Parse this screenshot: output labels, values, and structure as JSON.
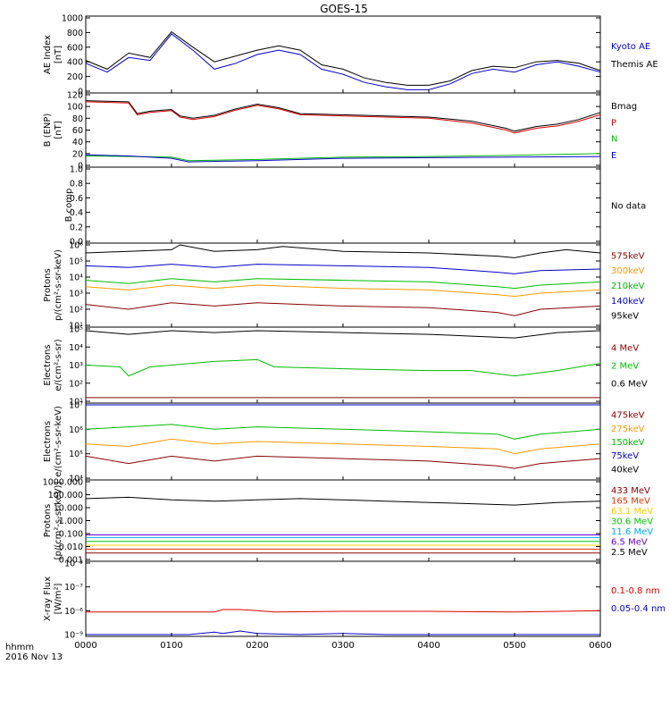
{
  "title": "GOES-15",
  "footer": {
    "hhmm": "hhmm",
    "date": "2016 Nov 13"
  },
  "x_axis": {
    "ticks": [
      "0000",
      "0100",
      "0200",
      "0300",
      "0400",
      "0500",
      "0600"
    ],
    "range_hours": [
      0,
      6
    ]
  },
  "panels": [
    {
      "id": "ae",
      "ylabel": [
        "AE Index",
        "[nT]"
      ],
      "ticks": [
        "1000",
        "800",
        "600",
        "400",
        "200",
        "0"
      ],
      "ylim": [
        0,
        1000
      ],
      "scale": "linear",
      "legend": [
        {
          "text": "Kyoto AE",
          "color": "#0000cc"
        },
        {
          "text": "Themis AE",
          "color": "#000000"
        }
      ]
    },
    {
      "id": "b-enp",
      "ylabel": [
        "B (ENP)",
        "[nT]"
      ],
      "ticks": [
        "120",
        "100",
        "80",
        "60",
        "40",
        "20",
        "0"
      ],
      "ylim": [
        0,
        120
      ],
      "scale": "linear",
      "legend": [
        {
          "text": "Bmag",
          "color": "#000000"
        },
        {
          "text": "P",
          "color": "#dd0000"
        },
        {
          "text": "N",
          "color": "#00bb00"
        },
        {
          "text": "E",
          "color": "#0000cc"
        }
      ]
    },
    {
      "id": "b-comp",
      "ylabel": [
        "B comp"
      ],
      "ticks": [
        "1.0",
        "0.8",
        "0.6",
        "0.4",
        "0.2",
        "0.0"
      ],
      "ylim": [
        0,
        1
      ],
      "scale": "linear",
      "legend": [
        {
          "text": "No data",
          "color": "#000000"
        }
      ]
    },
    {
      "id": "protons-low",
      "ylabel": [
        "Protons",
        "p/(cm²-s-sr-keV)"
      ],
      "ticks": [
        "10⁶",
        "10⁵",
        "10⁴",
        "10³",
        "10²",
        "10¹"
      ],
      "ylim": [
        1,
        6
      ],
      "scale": "log",
      "legend": [
        {
          "text": "575keV",
          "color": "#880000"
        },
        {
          "text": "300keV",
          "color": "#ff9900"
        },
        {
          "text": "210keV",
          "color": "#00bb00"
        },
        {
          "text": "140keV",
          "color": "#0000cc"
        },
        {
          "text": "95keV",
          "color": "#000000"
        }
      ]
    },
    {
      "id": "electrons-mev",
      "ylabel": [
        "Electrons",
        "e/(cm²-s-sr)"
      ],
      "ticks": [
        "10⁵",
        "10⁴",
        "10³",
        "10²",
        "10¹"
      ],
      "ylim": [
        1,
        5
      ],
      "scale": "log",
      "legend": [
        {
          "text": "4 MeV",
          "color": "#880000"
        },
        {
          "text": "2 MeV",
          "color": "#00bb00"
        },
        {
          "text": "0.6 MeV",
          "color": "#000000"
        }
      ]
    },
    {
      "id": "electrons-kev",
      "ylabel": [
        "Electrons",
        "e/(cm²-s-sr-keV)"
      ],
      "ticks": [
        "10⁷",
        "10⁶",
        "10⁵",
        "10⁴"
      ],
      "ylim": [
        4,
        7
      ],
      "scale": "log",
      "legend": [
        {
          "text": "475keV",
          "color": "#880000"
        },
        {
          "text": "275keV",
          "color": "#ff9900"
        },
        {
          "text": "150keV",
          "color": "#00bb00"
        },
        {
          "text": "75keV",
          "color": "#0000cc"
        },
        {
          "text": "40keV",
          "color": "#000000"
        }
      ]
    },
    {
      "id": "protons-mev",
      "ylabel": [
        "Protons",
        "[p/(cm²-s-sr-keV)]"
      ],
      "ticks": [
        "1000.000",
        "100.000",
        "10.000",
        "1.000",
        "0.100",
        "0.010",
        "0.001"
      ],
      "ylim": [
        -3,
        3
      ],
      "scale": "log",
      "legend": [
        {
          "text": "433 MeV",
          "color": "#880000"
        },
        {
          "text": "165 MeV",
          "color": "#dd3300"
        },
        {
          "text": "63.1 MeV",
          "color": "#ffcc00"
        },
        {
          "text": "30.6 MeV",
          "color": "#00cc00"
        },
        {
          "text": "11.6 MeV",
          "color": "#00aaff"
        },
        {
          "text": "6.5 MeV",
          "color": "#6600cc"
        },
        {
          "text": "2.5 MeV",
          "color": "#000000"
        }
      ]
    },
    {
      "id": "xray",
      "ylabel": [
        "X-ray Flux",
        "[W/m²]"
      ],
      "ticks": [
        "10⁻³",
        "10⁻⁷",
        "10⁻⁶",
        "10⁻⁹"
      ],
      "ylim": [
        -9,
        -3
      ],
      "scale": "log",
      "legend": [
        {
          "text": "0.1-0.8 nm",
          "color": "#dd0000"
        },
        {
          "text": "0.05-0.4 nm",
          "color": "#0000cc"
        }
      ]
    }
  ],
  "chart_data": {
    "type": "line",
    "x_unit": "hours since 0000 UT",
    "series": [
      {
        "panel": "ae",
        "name": "Themis AE",
        "color": "#000000",
        "x": [
          0,
          0.25,
          0.5,
          0.75,
          1.0,
          1.25,
          1.5,
          1.75,
          2.0,
          2.25,
          2.5,
          2.75,
          3.0,
          3.25,
          3.5,
          3.75,
          4.0,
          4.25,
          4.5,
          4.75,
          5.0,
          5.25,
          5.5,
          5.75,
          6.0
        ],
        "y": [
          420,
          300,
          520,
          460,
          810,
          600,
          400,
          480,
          560,
          620,
          560,
          360,
          300,
          180,
          120,
          80,
          80,
          140,
          280,
          340,
          320,
          400,
          420,
          380,
          280
        ]
      },
      {
        "panel": "ae",
        "name": "Kyoto AE",
        "color": "#0000cc",
        "x": [
          0,
          0.25,
          0.5,
          0.75,
          1.0,
          1.25,
          1.5,
          1.75,
          2.0,
          2.25,
          2.5,
          2.75,
          3.0,
          3.25,
          3.5,
          3.75,
          4.0,
          4.25,
          4.5,
          4.75,
          5.0,
          5.25,
          5.5,
          5.75,
          6.0
        ],
        "y": [
          380,
          260,
          460,
          420,
          780,
          560,
          300,
          380,
          500,
          560,
          500,
          300,
          230,
          120,
          60,
          20,
          20,
          100,
          240,
          300,
          260,
          360,
          400,
          340,
          260
        ]
      },
      {
        "panel": "b-enp",
        "name": "Bmag",
        "color": "#000000",
        "x": [
          0,
          0.5,
          0.6,
          0.75,
          1.0,
          1.1,
          1.25,
          1.5,
          1.75,
          2.0,
          2.25,
          2.5,
          3.0,
          3.5,
          4.0,
          4.5,
          4.9,
          5.0,
          5.25,
          5.5,
          5.75,
          6.0
        ],
        "y": [
          110,
          108,
          88,
          92,
          95,
          84,
          80,
          85,
          96,
          104,
          98,
          88,
          86,
          84,
          82,
          75,
          63,
          58,
          66,
          70,
          78,
          90
        ]
      },
      {
        "panel": "b-enp",
        "name": "P",
        "color": "#dd0000",
        "x": [
          0,
          0.5,
          0.6,
          0.75,
          1.0,
          1.1,
          1.25,
          1.5,
          1.75,
          2.0,
          2.25,
          2.5,
          3.0,
          3.5,
          4.0,
          4.5,
          4.9,
          5.0,
          5.25,
          5.5,
          5.75,
          6.0
        ],
        "y": [
          108,
          106,
          86,
          90,
          93,
          82,
          78,
          83,
          94,
          102,
          96,
          86,
          84,
          82,
          80,
          72,
          60,
          55,
          63,
          67,
          75,
          86
        ]
      },
      {
        "panel": "b-enp",
        "name": "N",
        "color": "#00bb00",
        "x": [
          0,
          1,
          1.2,
          2,
          3,
          4,
          5,
          6
        ],
        "y": [
          16,
          14,
          8,
          10,
          14,
          15,
          17,
          20
        ]
      },
      {
        "panel": "b-enp",
        "name": "E",
        "color": "#0000cc",
        "x": [
          0,
          0.5,
          1,
          1.2,
          2,
          3,
          4,
          5,
          6
        ],
        "y": [
          18,
          16,
          12,
          6,
          8,
          12,
          13,
          14,
          15
        ]
      },
      {
        "panel": "protons-low",
        "name": "95keV",
        "color": "#000000",
        "x": [
          0,
          0.5,
          1.0,
          1.1,
          1.5,
          2.0,
          2.3,
          3.0,
          4.0,
          4.8,
          5.0,
          5.3,
          5.6,
          6.0
        ],
        "y": [
          5.5,
          5.6,
          5.7,
          6.0,
          5.6,
          5.7,
          5.9,
          5.6,
          5.5,
          5.3,
          5.2,
          5.5,
          5.7,
          5.5
        ]
      },
      {
        "panel": "protons-low",
        "name": "140keV",
        "color": "#0000cc",
        "x": [
          0,
          0.5,
          1.0,
          1.5,
          2.0,
          3.0,
          4.0,
          4.8,
          5.0,
          5.3,
          6.0
        ],
        "y": [
          4.7,
          4.6,
          4.8,
          4.6,
          4.8,
          4.7,
          4.6,
          4.3,
          4.2,
          4.4,
          4.5
        ]
      },
      {
        "panel": "protons-low",
        "name": "210keV",
        "color": "#00bb00",
        "x": [
          0,
          0.5,
          1.0,
          1.5,
          2.0,
          3.0,
          4.0,
          4.8,
          5.0,
          5.3,
          6.0
        ],
        "y": [
          3.8,
          3.6,
          3.9,
          3.7,
          3.9,
          3.8,
          3.7,
          3.4,
          3.3,
          3.5,
          3.7
        ]
      },
      {
        "panel": "protons-low",
        "name": "300keV",
        "color": "#ff9900",
        "x": [
          0,
          0.5,
          1.0,
          1.5,
          2.0,
          3.0,
          4.0,
          4.8,
          5.0,
          5.3,
          6.0
        ],
        "y": [
          3.4,
          3.2,
          3.5,
          3.3,
          3.5,
          3.3,
          3.2,
          2.9,
          2.8,
          3.0,
          3.2
        ]
      },
      {
        "panel": "protons-low",
        "name": "575keV",
        "color": "#880000",
        "x": [
          0,
          0.5,
          1.0,
          1.5,
          2.0,
          3.0,
          4.0,
          4.8,
          5.0,
          5.3,
          6.0
        ],
        "y": [
          2.3,
          2.0,
          2.4,
          2.2,
          2.4,
          2.2,
          2.1,
          1.8,
          1.6,
          2.0,
          2.2
        ]
      },
      {
        "panel": "electrons-mev",
        "name": "0.6 MeV",
        "color": "#000000",
        "x": [
          0,
          0.5,
          1.0,
          1.5,
          2.0,
          3.0,
          4.0,
          4.5,
          5.0,
          5.5,
          6.0
        ],
        "y": [
          4.9,
          4.7,
          4.9,
          4.8,
          4.9,
          4.8,
          4.7,
          4.6,
          4.5,
          4.8,
          4.9
        ]
      },
      {
        "panel": "electrons-mev",
        "name": "2 MeV",
        "color": "#00bb00",
        "x": [
          0,
          0.4,
          0.5,
          0.75,
          1.0,
          1.5,
          2.0,
          2.2,
          3.0,
          4.0,
          4.5,
          5.0,
          5.5,
          6.0
        ],
        "y": [
          3.0,
          2.9,
          2.4,
          2.9,
          3.0,
          3.2,
          3.3,
          2.9,
          2.8,
          2.7,
          2.7,
          2.4,
          2.7,
          3.1
        ]
      },
      {
        "panel": "electrons-mev",
        "name": "4 MeV",
        "color": "#880000",
        "x": [
          0,
          1,
          2,
          3,
          4,
          5,
          6
        ],
        "y": [
          1.2,
          1.2,
          1.2,
          1.2,
          1.2,
          1.2,
          1.2
        ]
      },
      {
        "panel": "electrons-kev",
        "name": "40keV",
        "color": "#000000",
        "x": [
          0,
          6
        ],
        "y": [
          7.0,
          7.0
        ]
      },
      {
        "panel": "electrons-kev",
        "name": "75keV",
        "color": "#0000cc",
        "x": [
          0,
          6
        ],
        "y": [
          7.0,
          7.0
        ]
      },
      {
        "panel": "electrons-kev",
        "name": "150keV",
        "color": "#00bb00",
        "x": [
          0,
          0.5,
          1.0,
          1.5,
          2.0,
          3.0,
          4.0,
          4.8,
          5.0,
          5.3,
          6.0
        ],
        "y": [
          6.0,
          6.1,
          6.2,
          6.0,
          6.1,
          6.0,
          5.9,
          5.8,
          5.6,
          5.8,
          6.0
        ]
      },
      {
        "panel": "electrons-kev",
        "name": "275keV",
        "color": "#ff9900",
        "x": [
          0,
          0.5,
          1.0,
          1.5,
          2.0,
          3.0,
          4.0,
          4.8,
          5.0,
          5.3,
          6.0
        ],
        "y": [
          5.4,
          5.3,
          5.6,
          5.4,
          5.5,
          5.4,
          5.3,
          5.2,
          5.0,
          5.2,
          5.4
        ]
      },
      {
        "panel": "electrons-kev",
        "name": "475keV",
        "color": "#880000",
        "x": [
          0,
          0.5,
          1.0,
          1.5,
          2.0,
          3.0,
          4.0,
          4.8,
          5.0,
          5.3,
          6.0
        ],
        "y": [
          4.9,
          4.6,
          4.9,
          4.7,
          4.9,
          4.8,
          4.7,
          4.5,
          4.4,
          4.6,
          4.8
        ]
      },
      {
        "panel": "protons-mev",
        "name": "2.5 MeV",
        "color": "#000000",
        "x": [
          0,
          0.5,
          1.0,
          1.5,
          2.0,
          2.5,
          3.0,
          3.5,
          4.0,
          4.5,
          5.0,
          5.5,
          6.0
        ],
        "y": [
          1.7,
          1.8,
          1.6,
          1.5,
          1.6,
          1.7,
          1.6,
          1.5,
          1.4,
          1.3,
          1.2,
          1.4,
          1.5
        ]
      },
      {
        "panel": "protons-mev",
        "name": "6.5 MeV",
        "color": "#6600cc",
        "x": [
          0,
          3,
          6
        ],
        "y": [
          -1.1,
          -1.1,
          -1.1
        ]
      },
      {
        "panel": "protons-mev",
        "name": "11.6 MeV",
        "color": "#00aaff",
        "x": [
          0,
          3,
          6
        ],
        "y": [
          -1.3,
          -1.3,
          -1.3
        ]
      },
      {
        "panel": "protons-mev",
        "name": "30.6 MeV",
        "color": "#00cc00",
        "x": [
          0,
          3,
          6
        ],
        "y": [
          -1.6,
          -1.6,
          -1.6
        ]
      },
      {
        "panel": "protons-mev",
        "name": "63.1 MeV",
        "color": "#ffcc00",
        "x": [
          0,
          3,
          6
        ],
        "y": [
          -1.9,
          -1.9,
          -1.9
        ]
      },
      {
        "panel": "protons-mev",
        "name": "165 MeV",
        "color": "#dd3300",
        "x": [
          0,
          3,
          6
        ],
        "y": [
          -2.2,
          -2.2,
          -2.2
        ]
      },
      {
        "panel": "protons-mev",
        "name": "433 MeV",
        "color": "#880000",
        "x": [
          0,
          3,
          6
        ],
        "y": [
          -2.5,
          -2.5,
          -2.5
        ]
      },
      {
        "panel": "xray",
        "name": "0.1-0.8 nm",
        "color": "#dd0000",
        "x": [
          0,
          1.5,
          1.6,
          1.8,
          2.0,
          2.2,
          3.0,
          4.0,
          5.0,
          6.0
        ],
        "y": [
          -7.1,
          -7.1,
          -6.9,
          -6.9,
          -7.0,
          -7.1,
          -7.05,
          -7.05,
          -7.1,
          -7.0
        ]
      },
      {
        "panel": "xray",
        "name": "0.05-0.4 nm",
        "color": "#0000cc",
        "x": [
          0,
          1.2,
          1.5,
          1.6,
          1.8,
          2.0,
          2.5,
          3.0,
          3.5,
          4.0,
          6.0
        ],
        "y": [
          -9,
          -9,
          -8.8,
          -8.9,
          -8.7,
          -8.9,
          -9,
          -8.9,
          -9,
          -9,
          -9
        ]
      }
    ]
  }
}
